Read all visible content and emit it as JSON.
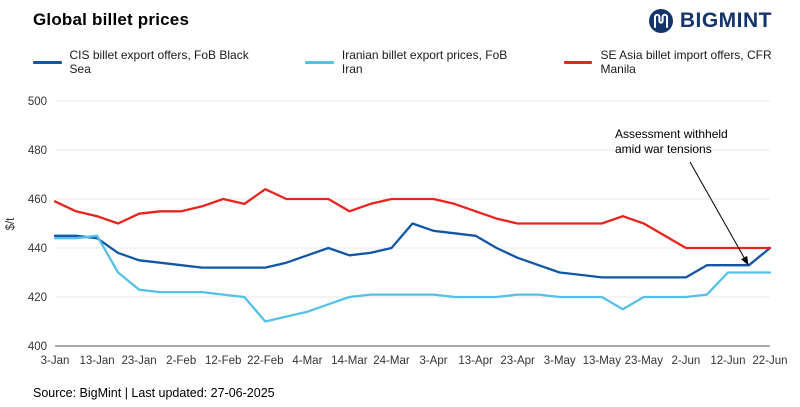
{
  "header": {
    "title": "Global billet prices",
    "logo_text": "BIGMINT"
  },
  "chart_data": {
    "type": "line",
    "title": "Global billet prices",
    "xlabel": "",
    "ylabel": "$/t",
    "ylim": [
      400,
      500
    ],
    "yticks": [
      400,
      420,
      440,
      460,
      480,
      500
    ],
    "grid": "horizontal-light",
    "legend_position": "top-left",
    "categories": [
      "3-Jan",
      "13-Jan",
      "23-Jan",
      "2-Feb",
      "12-Feb",
      "22-Feb",
      "4-Mar",
      "14-Mar",
      "24-Mar",
      "3-Apr",
      "13-Apr",
      "23-Apr",
      "3-May",
      "13-May",
      "23-May",
      "2-Jun",
      "12-Jun",
      "22-Jun"
    ],
    "points_per_category_gap": 2,
    "series": [
      {
        "name": "CIS billet export offers, FoB Black Sea",
        "color": "#1157a5",
        "values": [
          445,
          445,
          444,
          438,
          435,
          434,
          433,
          432,
          432,
          432,
          432,
          434,
          437,
          440,
          437,
          438,
          440,
          450,
          447,
          446,
          445,
          440,
          436,
          433,
          430,
          429,
          428,
          428,
          428,
          428,
          428,
          433,
          433,
          433,
          440
        ]
      },
      {
        "name": "Iranian billet export prices, FoB Iran",
        "color": "#54c1e8",
        "values": [
          444,
          444,
          445,
          430,
          423,
          422,
          422,
          422,
          421,
          420,
          410,
          412,
          414,
          417,
          420,
          421,
          421,
          421,
          421,
          420,
          420,
          420,
          421,
          421,
          420,
          420,
          420,
          415,
          420,
          420,
          420,
          421,
          430,
          430,
          430
        ]
      },
      {
        "name": "SE Asia billet import offers, CFR Manila",
        "color": "#e8241c",
        "values": [
          459,
          455,
          453,
          450,
          454,
          455,
          455,
          457,
          460,
          458,
          464,
          460,
          460,
          460,
          455,
          458,
          460,
          460,
          460,
          458,
          455,
          452,
          450,
          450,
          450,
          450,
          450,
          453,
          450,
          445,
          440,
          440,
          440,
          440,
          440
        ]
      }
    ],
    "annotation": {
      "lines": [
        "Assessment withheld",
        "amid war tensions"
      ],
      "target_series": "Iranian billet export prices, FoB Iran",
      "target_category": "22-Jun",
      "target_value": 430
    }
  },
  "footer": {
    "source": "Source: BigMint | Last updated: 27-06-2025"
  }
}
